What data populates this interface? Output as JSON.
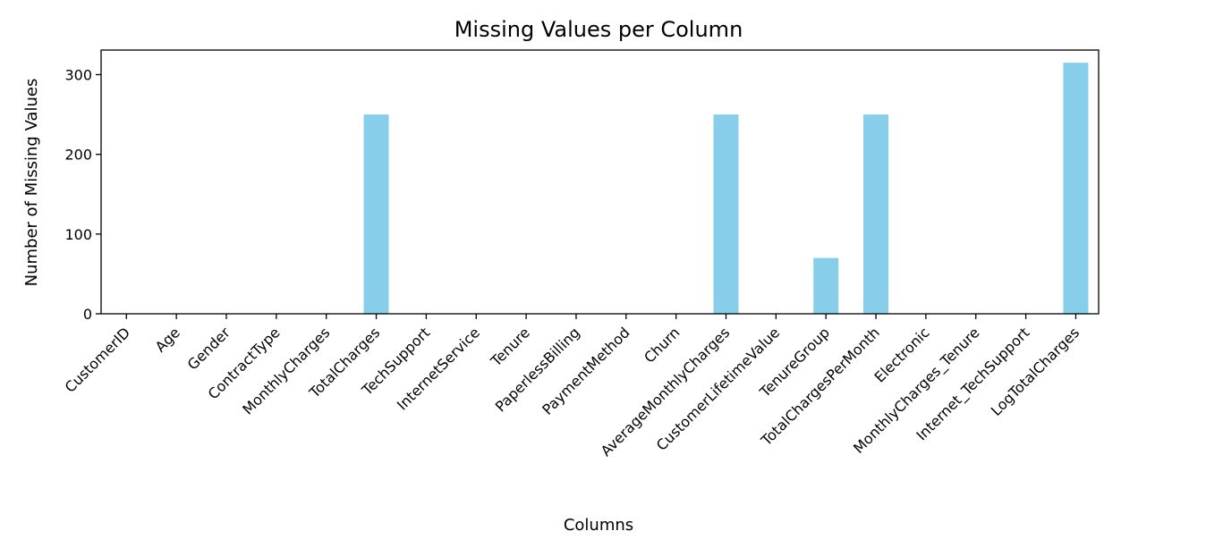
{
  "chart_data": {
    "type": "bar",
    "title": "Missing Values per Column",
    "xlabel": "Columns",
    "ylabel": "Number of Missing Values",
    "ylim": [
      0,
      330
    ],
    "yticks": [
      0,
      100,
      200,
      300
    ],
    "grid": false,
    "bar_color": "#87ceeb",
    "categories": [
      "CustomerID",
      "Age",
      "Gender",
      "ContractType",
      "MonthlyCharges",
      "TotalCharges",
      "TechSupport",
      "InternetService",
      "Tenure",
      "PaperlessBilling",
      "PaymentMethod",
      "Churn",
      "AverageMonthlyCharges",
      "CustomerLifetimeValue",
      "TenureGroup",
      "TotalChargesPerMonth",
      "Electronic",
      "MonthlyCharges_Tenure",
      "Internet_TechSupport",
      "LogTotalCharges"
    ],
    "values": [
      0,
      0,
      0,
      0,
      0,
      250,
      0,
      0,
      0,
      0,
      0,
      0,
      250,
      0,
      70,
      250,
      0,
      0,
      0,
      315
    ]
  }
}
